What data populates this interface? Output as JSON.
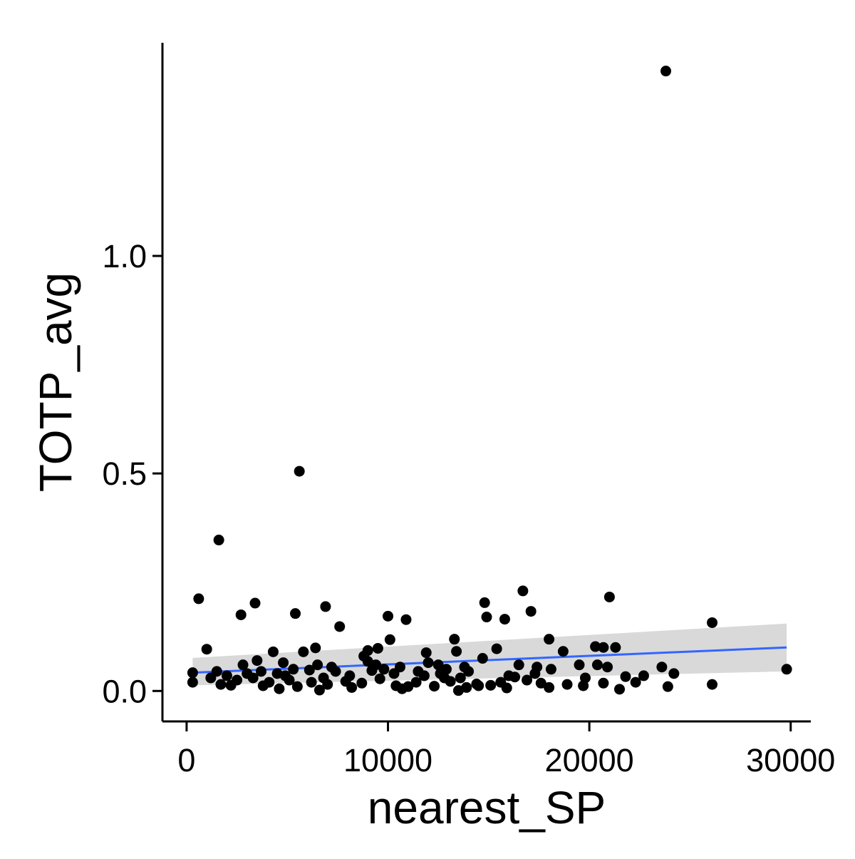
{
  "chart_data": {
    "type": "scatter",
    "title": "",
    "xlabel": "nearest_SP",
    "ylabel": "TOTP_avg",
    "xlim": [
      -1200,
      31000
    ],
    "ylim": [
      -0.07,
      1.49
    ],
    "x_ticks": [
      0,
      10000,
      20000,
      30000
    ],
    "x_tick_labels": [
      "0",
      "10000",
      "20000",
      "30000"
    ],
    "y_ticks": [
      0.0,
      0.5,
      1.0
    ],
    "y_tick_labels": [
      "0.0",
      "0.5",
      "1.0"
    ],
    "grid": false,
    "legend": "none",
    "colors": {
      "points": "#000000",
      "fit_line": "#3366ff",
      "ribbon": "#bfbfbf"
    },
    "fit": {
      "method": "linear",
      "x": [
        300,
        29800
      ],
      "y": [
        0.042,
        0.1
      ],
      "ci_lower": [
        0.013,
        0.045
      ],
      "ci_upper": [
        0.076,
        0.155
      ]
    },
    "points": [
      [
        23800,
        1.425
      ],
      [
        5600,
        0.505
      ],
      [
        1600,
        0.347
      ],
      [
        600,
        0.212
      ],
      [
        3400,
        0.202
      ],
      [
        2700,
        0.175
      ],
      [
        5400,
        0.178
      ],
      [
        6900,
        0.194
      ],
      [
        7600,
        0.148
      ],
      [
        1000,
        0.096
      ],
      [
        10000,
        0.172
      ],
      [
        10900,
        0.164
      ],
      [
        10100,
        0.118
      ],
      [
        13300,
        0.119
      ],
      [
        14800,
        0.203
      ],
      [
        14900,
        0.17
      ],
      [
        15800,
        0.165
      ],
      [
        16700,
        0.23
      ],
      [
        17100,
        0.183
      ],
      [
        18000,
        0.119
      ],
      [
        21000,
        0.216
      ],
      [
        26100,
        0.157
      ],
      [
        9000,
        0.093
      ],
      [
        9500,
        0.098
      ],
      [
        4300,
        0.09
      ],
      [
        5800,
        0.09
      ],
      [
        6400,
        0.099
      ],
      [
        11900,
        0.088
      ],
      [
        13400,
        0.091
      ],
      [
        14700,
        0.075
      ],
      [
        15400,
        0.097
      ],
      [
        18700,
        0.091
      ],
      [
        20300,
        0.102
      ],
      [
        21300,
        0.1
      ],
      [
        20700,
        0.1
      ],
      [
        3500,
        0.07
      ],
      [
        4800,
        0.065
      ],
      [
        7200,
        0.055
      ],
      [
        9800,
        0.05
      ],
      [
        12500,
        0.06
      ],
      [
        17400,
        0.055
      ],
      [
        19500,
        0.06
      ],
      [
        23600,
        0.055
      ],
      [
        24200,
        0.04
      ],
      [
        22700,
        0.035
      ],
      [
        21800,
        0.033
      ],
      [
        29800,
        0.05
      ],
      [
        26100,
        0.015
      ],
      [
        23900,
        0.01
      ],
      [
        19700,
        0.012
      ],
      [
        18900,
        0.015
      ],
      [
        18000,
        0.008
      ],
      [
        15900,
        0.007
      ],
      [
        13500,
        0.001
      ],
      [
        11000,
        0.01
      ],
      [
        8200,
        0.008
      ],
      [
        4600,
        0.005
      ],
      [
        2200,
        0.013
      ],
      [
        300,
        0.042
      ],
      [
        300,
        0.02
      ],
      [
        1200,
        0.03
      ],
      [
        1700,
        0.015
      ],
      [
        2500,
        0.025
      ],
      [
        3000,
        0.04
      ],
      [
        3800,
        0.012
      ],
      [
        4900,
        0.035
      ],
      [
        5500,
        0.01
      ],
      [
        6200,
        0.02
      ],
      [
        6600,
        0.002
      ],
      [
        7000,
        0.015
      ],
      [
        8700,
        0.018
      ],
      [
        9600,
        0.028
      ],
      [
        10400,
        0.012
      ],
      [
        10700,
        0.005
      ],
      [
        11400,
        0.02
      ],
      [
        12300,
        0.011
      ],
      [
        12800,
        0.03
      ],
      [
        13100,
        0.022
      ],
      [
        13900,
        0.008
      ],
      [
        14400,
        0.016
      ],
      [
        15100,
        0.013
      ],
      [
        16300,
        0.032
      ],
      [
        16900,
        0.025
      ],
      [
        17600,
        0.018
      ],
      [
        20700,
        0.018
      ],
      [
        21500,
        0.004
      ],
      [
        20400,
        0.06
      ],
      [
        18100,
        0.05
      ],
      [
        16000,
        0.035
      ],
      [
        14000,
        0.045
      ],
      [
        12600,
        0.04
      ],
      [
        11800,
        0.035
      ],
      [
        9200,
        0.047
      ],
      [
        8100,
        0.035
      ],
      [
        7400,
        0.045
      ],
      [
        6100,
        0.048
      ],
      [
        5300,
        0.05
      ],
      [
        4500,
        0.04
      ],
      [
        3300,
        0.03
      ],
      [
        2000,
        0.035
      ],
      [
        1500,
        0.045
      ],
      [
        2800,
        0.06
      ],
      [
        5100,
        0.025
      ],
      [
        6800,
        0.03
      ],
      [
        9000,
        0.068
      ],
      [
        10300,
        0.04
      ],
      [
        13600,
        0.03
      ],
      [
        14500,
        0.012
      ],
      [
        15600,
        0.02
      ],
      [
        17300,
        0.04
      ],
      [
        19800,
        0.03
      ],
      [
        20900,
        0.055
      ],
      [
        22300,
        0.02
      ],
      [
        16500,
        0.06
      ],
      [
        12000,
        0.065
      ],
      [
        8800,
        0.08
      ],
      [
        10600,
        0.055
      ],
      [
        11500,
        0.045
      ],
      [
        13800,
        0.055
      ],
      [
        7900,
        0.022
      ],
      [
        4100,
        0.02
      ],
      [
        3700,
        0.045
      ],
      [
        6500,
        0.06
      ],
      [
        9400,
        0.06
      ],
      [
        12900,
        0.05
      ]
    ]
  }
}
